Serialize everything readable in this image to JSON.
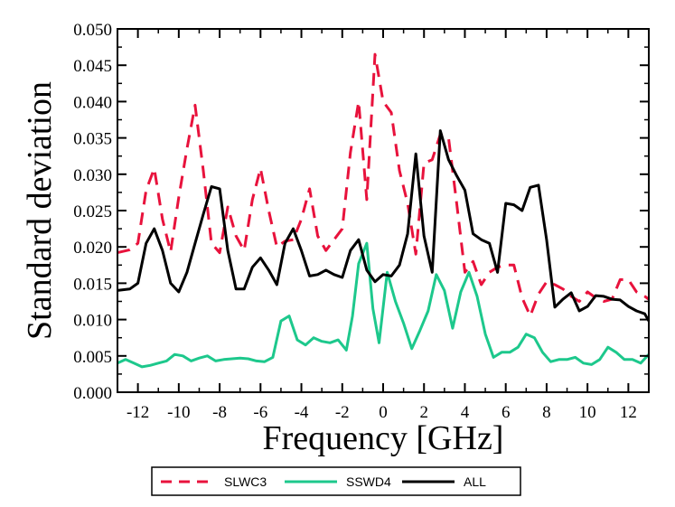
{
  "chart_data": {
    "type": "line",
    "xlabel": "Frequency [GHz]",
    "ylabel": "Standard deviation",
    "xlim": [
      -13,
      13
    ],
    "ylim": [
      0.0,
      0.05
    ],
    "xticks": [
      -12,
      -10,
      -8,
      -6,
      -4,
      -2,
      0,
      2,
      4,
      6,
      8,
      10,
      12
    ],
    "xtick_labels": [
      "-12",
      "-10",
      "-8",
      "-6",
      "-4",
      "-2",
      "0",
      "2",
      "4",
      "6",
      "8",
      "10",
      "12"
    ],
    "yticks": [
      0.0,
      0.005,
      0.01,
      0.015,
      0.02,
      0.025,
      0.03,
      0.035,
      0.04,
      0.045,
      0.05
    ],
    "ytick_labels": [
      "0.000",
      "0.005",
      "0.010",
      "0.015",
      "0.020",
      "0.025",
      "0.030",
      "0.035",
      "0.040",
      "0.045",
      "0.050"
    ],
    "legend_position": "bottom-center",
    "series": [
      {
        "name": "SLWC3",
        "color": "#e8123c",
        "style": "dashed",
        "x": [
          -13,
          -12.4,
          -12,
          -11.6,
          -11.2,
          -10.8,
          -10.4,
          -10,
          -9.6,
          -9.2,
          -8.8,
          -8.4,
          -8,
          -7.6,
          -7.2,
          -6.8,
          -6.4,
          -6,
          -5.6,
          -5.2,
          -4.8,
          -4.4,
          -4,
          -3.6,
          -3.2,
          -2.8,
          -2.4,
          -2,
          -1.6,
          -1.2,
          -0.8,
          -0.4,
          0,
          0.4,
          0.8,
          1.2,
          1.6,
          2,
          2.4,
          2.8,
          3.2,
          3.6,
          4,
          4.4,
          4.8,
          5.2,
          5.6,
          6,
          6.4,
          6.8,
          7.2,
          7.6,
          8,
          8.4,
          8.8,
          9.2,
          9.6,
          10,
          10.4,
          10.8,
          11.2,
          11.6,
          12,
          12.4,
          12.8,
          13
        ],
        "y": [
          0.0192,
          0.0196,
          0.0205,
          0.0278,
          0.0308,
          0.0238,
          0.0193,
          0.0268,
          0.0335,
          0.0395,
          0.0305,
          0.0205,
          0.0192,
          0.0255,
          0.0215,
          0.0195,
          0.0265,
          0.0308,
          0.025,
          0.02,
          0.0208,
          0.021,
          0.0238,
          0.028,
          0.0215,
          0.0195,
          0.021,
          0.0225,
          0.033,
          0.04,
          0.0265,
          0.0465,
          0.04,
          0.0385,
          0.0305,
          0.026,
          0.019,
          0.0315,
          0.032,
          0.0355,
          0.035,
          0.026,
          0.0165,
          0.018,
          0.0148,
          0.0165,
          0.0172,
          0.0175,
          0.0175,
          0.013,
          0.0105,
          0.0135,
          0.0152,
          0.0148,
          0.0142,
          0.0132,
          0.0125,
          0.0138,
          0.013,
          0.0125,
          0.0128,
          0.0155,
          0.0155,
          0.0138,
          0.0132,
          0.0128
        ]
      },
      {
        "name": "SSWD4",
        "color": "#1dc88c",
        "style": "solid",
        "x": [
          -13,
          -12.6,
          -12.2,
          -11.8,
          -11.4,
          -11,
          -10.6,
          -10.2,
          -9.8,
          -9.4,
          -9,
          -8.6,
          -8.2,
          -7.8,
          -7.4,
          -7,
          -6.6,
          -6.2,
          -5.8,
          -5.4,
          -5,
          -4.6,
          -4.2,
          -3.8,
          -3.4,
          -3,
          -2.6,
          -2.2,
          -1.8,
          -1.5,
          -1.2,
          -0.8,
          -0.5,
          -0.2,
          0.2,
          0.6,
          1,
          1.4,
          1.8,
          2.2,
          2.6,
          3,
          3.4,
          3.8,
          4.2,
          4.6,
          5,
          5.4,
          5.8,
          6.2,
          6.6,
          7,
          7.4,
          7.8,
          8.2,
          8.6,
          9,
          9.4,
          9.8,
          10.2,
          10.6,
          11,
          11.4,
          11.8,
          12.2,
          12.6,
          13
        ],
        "y": [
          0.004,
          0.0045,
          0.004,
          0.0035,
          0.0037,
          0.004,
          0.0043,
          0.0052,
          0.005,
          0.0043,
          0.0047,
          0.005,
          0.0043,
          0.0045,
          0.0046,
          0.0047,
          0.0046,
          0.0043,
          0.0042,
          0.0048,
          0.0098,
          0.0105,
          0.0072,
          0.0065,
          0.0075,
          0.007,
          0.0068,
          0.0072,
          0.0058,
          0.0105,
          0.0177,
          0.0205,
          0.0115,
          0.0068,
          0.0165,
          0.0125,
          0.0095,
          0.006,
          0.0085,
          0.0112,
          0.0162,
          0.014,
          0.0088,
          0.0138,
          0.0165,
          0.0132,
          0.008,
          0.0048,
          0.0055,
          0.0055,
          0.0062,
          0.008,
          0.0075,
          0.0055,
          0.0042,
          0.0045,
          0.0045,
          0.0048,
          0.004,
          0.0038,
          0.0045,
          0.0062,
          0.0055,
          0.0045,
          0.0045,
          0.004,
          0.0052
        ]
      },
      {
        "name": "ALL",
        "color": "#000000",
        "style": "solid",
        "x": [
          -13,
          -12.4,
          -12,
          -11.6,
          -11.2,
          -10.8,
          -10.4,
          -10,
          -9.6,
          -9.2,
          -8.8,
          -8.4,
          -8,
          -7.6,
          -7.2,
          -6.8,
          -6.4,
          -6,
          -5.6,
          -5.2,
          -4.8,
          -4.4,
          -4,
          -3.6,
          -3.2,
          -2.8,
          -2.4,
          -2,
          -1.6,
          -1.2,
          -0.8,
          -0.4,
          0,
          0.4,
          0.8,
          1.2,
          1.6,
          2,
          2.4,
          2.8,
          3.2,
          3.6,
          4,
          4.4,
          4.8,
          5.2,
          5.6,
          6,
          6.4,
          6.8,
          7.2,
          7.6,
          8,
          8.4,
          8.8,
          9.2,
          9.6,
          10,
          10.4,
          10.8,
          11.2,
          11.6,
          12,
          12.4,
          12.8,
          13
        ],
        "y": [
          0.014,
          0.0142,
          0.015,
          0.0205,
          0.0225,
          0.0195,
          0.015,
          0.0138,
          0.0165,
          0.0205,
          0.0245,
          0.0283,
          0.028,
          0.0195,
          0.0142,
          0.0142,
          0.0172,
          0.0185,
          0.0168,
          0.0148,
          0.0205,
          0.0225,
          0.0195,
          0.016,
          0.0162,
          0.0168,
          0.0162,
          0.0158,
          0.0195,
          0.021,
          0.0168,
          0.0152,
          0.0162,
          0.016,
          0.0175,
          0.0218,
          0.0328,
          0.0215,
          0.0165,
          0.036,
          0.032,
          0.0298,
          0.0278,
          0.0218,
          0.021,
          0.0205,
          0.0165,
          0.026,
          0.0258,
          0.025,
          0.0282,
          0.0285,
          0.021,
          0.0117,
          0.0128,
          0.0137,
          0.0112,
          0.0118,
          0.0133,
          0.0132,
          0.0128,
          0.0127,
          0.0118,
          0.0112,
          0.0108,
          0.0098
        ]
      }
    ]
  }
}
